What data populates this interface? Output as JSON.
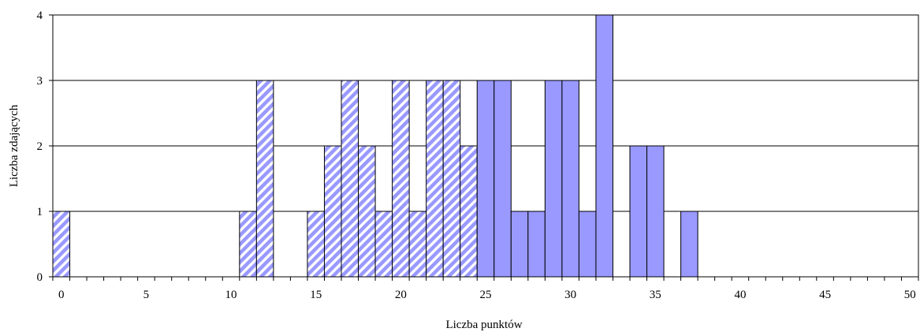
{
  "chart_data": {
    "type": "bar",
    "xlabel": "Liczba punktów",
    "ylabel": "Liczba zdających",
    "xlim": [
      0,
      50
    ],
    "ylim": [
      0,
      4
    ],
    "x_ticks": [
      "0",
      "5",
      "10",
      "15",
      "20",
      "25",
      "30",
      "35",
      "40",
      "45",
      "50"
    ],
    "y_ticks": [
      "0",
      "1",
      "2",
      "3",
      "4"
    ],
    "grid": "horizontal",
    "series": [
      {
        "fill": "hatched",
        "color": "#9999ff",
        "x": [
          0,
          11,
          12,
          15,
          16,
          17,
          18,
          19,
          20,
          21,
          22,
          23,
          24
        ],
        "values": [
          1,
          1,
          3,
          1,
          2,
          3,
          2,
          1,
          3,
          1,
          3,
          3,
          2
        ]
      },
      {
        "fill": "solid",
        "color": "#9999ff",
        "x": [
          25,
          26,
          27,
          28,
          29,
          30,
          31,
          32,
          34,
          35,
          37
        ],
        "values": [
          3,
          3,
          1,
          1,
          3,
          3,
          1,
          4,
          2,
          2,
          1
        ]
      }
    ]
  }
}
